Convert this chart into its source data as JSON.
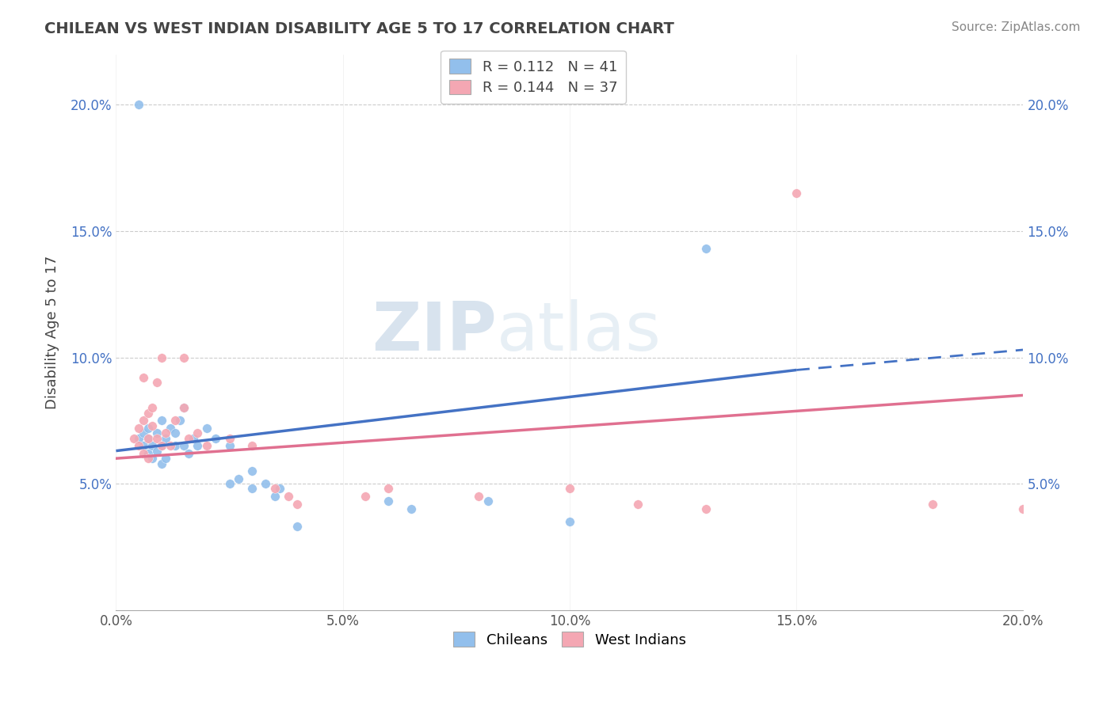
{
  "title": "CHILEAN VS WEST INDIAN DISABILITY AGE 5 TO 17 CORRELATION CHART",
  "source": "Source: ZipAtlas.com",
  "ylabel": "Disability Age 5 to 17",
  "xlim": [
    0.0,
    0.2
  ],
  "ylim": [
    0.0,
    0.22
  ],
  "xtick_labels": [
    "0.0%",
    "5.0%",
    "10.0%",
    "15.0%",
    "20.0%"
  ],
  "xtick_vals": [
    0.0,
    0.05,
    0.1,
    0.15,
    0.2
  ],
  "ytick_labels": [
    "5.0%",
    "10.0%",
    "15.0%",
    "20.0%"
  ],
  "ytick_vals": [
    0.05,
    0.1,
    0.15,
    0.2
  ],
  "chilean_color": "#92BFEC",
  "west_indian_color": "#F4A7B3",
  "chilean_line_color": "#4472C4",
  "west_indian_line_color": "#E07090",
  "R_chilean": 0.112,
  "N_chilean": 41,
  "R_west_indian": 0.144,
  "N_west_indian": 37,
  "watermark_zip": "ZIP",
  "watermark_atlas": "atlas",
  "chilean_scatter": [
    [
      0.005,
      0.068
    ],
    [
      0.006,
      0.065
    ],
    [
      0.006,
      0.07
    ],
    [
      0.007,
      0.062
    ],
    [
      0.007,
      0.068
    ],
    [
      0.007,
      0.072
    ],
    [
      0.008,
      0.06
    ],
    [
      0.008,
      0.065
    ],
    [
      0.009,
      0.063
    ],
    [
      0.009,
      0.07
    ],
    [
      0.01,
      0.058
    ],
    [
      0.01,
      0.065
    ],
    [
      0.01,
      0.075
    ],
    [
      0.011,
      0.06
    ],
    [
      0.011,
      0.068
    ],
    [
      0.012,
      0.072
    ],
    [
      0.013,
      0.065
    ],
    [
      0.013,
      0.07
    ],
    [
      0.014,
      0.075
    ],
    [
      0.015,
      0.08
    ],
    [
      0.015,
      0.065
    ],
    [
      0.016,
      0.062
    ],
    [
      0.017,
      0.068
    ],
    [
      0.018,
      0.065
    ],
    [
      0.02,
      0.072
    ],
    [
      0.022,
      0.068
    ],
    [
      0.025,
      0.065
    ],
    [
      0.025,
      0.05
    ],
    [
      0.027,
      0.052
    ],
    [
      0.03,
      0.048
    ],
    [
      0.03,
      0.055
    ],
    [
      0.033,
      0.05
    ],
    [
      0.035,
      0.045
    ],
    [
      0.036,
      0.048
    ],
    [
      0.04,
      0.033
    ],
    [
      0.06,
      0.043
    ],
    [
      0.065,
      0.04
    ],
    [
      0.082,
      0.043
    ],
    [
      0.1,
      0.035
    ],
    [
      0.13,
      0.143
    ],
    [
      0.005,
      0.2
    ]
  ],
  "west_indian_scatter": [
    [
      0.004,
      0.068
    ],
    [
      0.005,
      0.065
    ],
    [
      0.005,
      0.072
    ],
    [
      0.006,
      0.062
    ],
    [
      0.006,
      0.075
    ],
    [
      0.006,
      0.092
    ],
    [
      0.007,
      0.06
    ],
    [
      0.007,
      0.068
    ],
    [
      0.007,
      0.078
    ],
    [
      0.008,
      0.073
    ],
    [
      0.008,
      0.08
    ],
    [
      0.009,
      0.068
    ],
    [
      0.009,
      0.09
    ],
    [
      0.01,
      0.065
    ],
    [
      0.01,
      0.1
    ],
    [
      0.011,
      0.07
    ],
    [
      0.012,
      0.065
    ],
    [
      0.013,
      0.075
    ],
    [
      0.015,
      0.08
    ],
    [
      0.015,
      0.1
    ],
    [
      0.016,
      0.068
    ],
    [
      0.018,
      0.07
    ],
    [
      0.02,
      0.065
    ],
    [
      0.025,
      0.068
    ],
    [
      0.03,
      0.065
    ],
    [
      0.035,
      0.048
    ],
    [
      0.038,
      0.045
    ],
    [
      0.04,
      0.042
    ],
    [
      0.055,
      0.045
    ],
    [
      0.06,
      0.048
    ],
    [
      0.08,
      0.045
    ],
    [
      0.1,
      0.048
    ],
    [
      0.115,
      0.042
    ],
    [
      0.13,
      0.04
    ],
    [
      0.15,
      0.165
    ],
    [
      0.18,
      0.042
    ],
    [
      0.2,
      0.04
    ]
  ],
  "chilean_line": [
    [
      0.0,
      0.063
    ],
    [
      0.15,
      0.095
    ]
  ],
  "west_indian_line": [
    [
      0.0,
      0.06
    ],
    [
      0.2,
      0.085
    ]
  ],
  "chilean_dashed_line": [
    [
      0.15,
      0.095
    ],
    [
      0.2,
      0.103
    ]
  ]
}
